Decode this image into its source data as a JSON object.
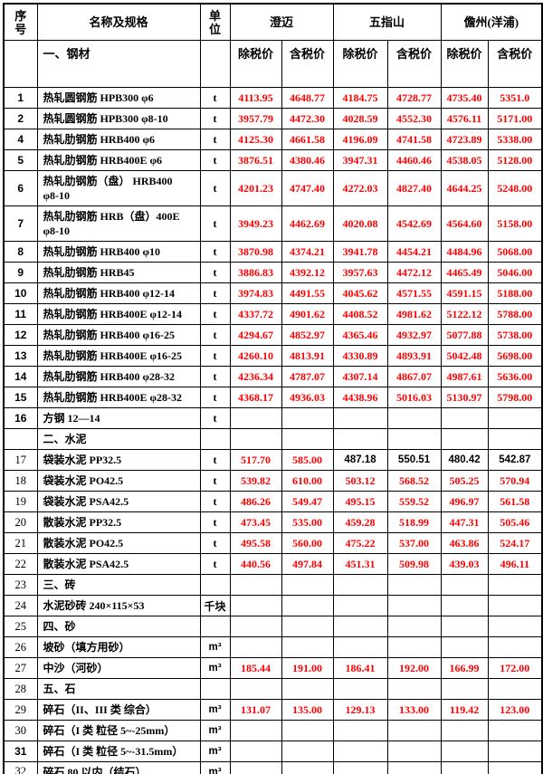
{
  "colors": {
    "price_red": "#ff0000",
    "text_black": "#000000",
    "border": "#000000",
    "background": "#ffffff"
  },
  "table": {
    "header": {
      "seq": "序\n号",
      "name": "名称及规格",
      "unit": "单\n位",
      "regions": [
        "澄迈",
        "五指山",
        "儋州(洋浦)"
      ],
      "price_types": [
        "除税价",
        "含税价"
      ],
      "first_section": "一、钢材"
    },
    "rows": [
      {
        "no": "1",
        "name": "热轧圆钢筋 HPB300 φ6",
        "unit": "t",
        "vals": [
          "4113.95",
          "4648.77",
          "4184.75",
          "4728.77",
          "4735.40",
          "5351.0"
        ]
      },
      {
        "no": "2",
        "name": "热轧圆钢筋 HPB300 φ8-10",
        "unit": "t",
        "vals": [
          "3957.79",
          "4472.30",
          "4028.59",
          "4552.30",
          "4576.11",
          "5171.00"
        ]
      },
      {
        "no": "4",
        "name": "热轧肋钢筋 HRB400 φ6",
        "unit": "t",
        "vals": [
          "4125.30",
          "4661.58",
          "4196.09",
          "4741.58",
          "4723.89",
          "5338.00"
        ]
      },
      {
        "no": "5",
        "name": "热轧肋钢筋 HRB400E φ6",
        "unit": "t",
        "vals": [
          "3876.51",
          "4380.46",
          "3947.31",
          "4460.46",
          "4538.05",
          "5128.00"
        ]
      },
      {
        "no": "6",
        "name": "热轧肋钢筋（盘） HRB400\nφ8-10",
        "unit": "t",
        "tall": true,
        "vals": [
          "4201.23",
          "4747.40",
          "4272.03",
          "4827.40",
          "4644.25",
          "5248.00"
        ]
      },
      {
        "no": "7",
        "name": "热轧肋钢筋 HRB（盘）400E\nφ8-10",
        "unit": "t",
        "tall": true,
        "vals": [
          "3949.23",
          "4462.69",
          "4020.08",
          "4542.69",
          "4564.60",
          "5158.00"
        ]
      },
      {
        "no": "8",
        "name": "热轧肋钢筋 HRB400 φ10",
        "unit": "t",
        "vals": [
          "3870.98",
          "4374.21",
          "3941.78",
          "4454.21",
          "4484.96",
          "5068.00"
        ]
      },
      {
        "no": "9",
        "name": "热轧肋钢筋 HRB45",
        "unit": "t",
        "vals": [
          "3886.83",
          "4392.12",
          "3957.63",
          "4472.12",
          "4465.49",
          "5046.00"
        ]
      },
      {
        "no": "10",
        "name": "热轧肋钢筋 HRB400 φ12-14",
        "unit": "t",
        "vals": [
          "3974.83",
          "4491.55",
          "4045.62",
          "4571.55",
          "4591.15",
          "5188.00"
        ]
      },
      {
        "no": "11",
        "name": "热轧肋钢筋 HRB400E φ12-14",
        "unit": "t",
        "vals": [
          "4337.72",
          "4901.62",
          "4408.52",
          "4981.62",
          "5122.12",
          "5788.00"
        ]
      },
      {
        "no": "12",
        "name": "热轧肋钢筋 HRB400 φ16-25",
        "unit": "t",
        "vals": [
          "4294.67",
          "4852.97",
          "4365.46",
          "4932.97",
          "5077.88",
          "5738.00"
        ]
      },
      {
        "no": "13",
        "name": "热轧肋钢筋 HRB400E φ16-25",
        "unit": "t",
        "vals": [
          "4260.10",
          "4813.91",
          "4330.89",
          "4893.91",
          "5042.48",
          "5698.00"
        ]
      },
      {
        "no": "14",
        "name": "热轧肋钢筋 HRB400 φ28-32",
        "unit": "t",
        "vals": [
          "4236.34",
          "4787.07",
          "4307.14",
          "4867.07",
          "4987.61",
          "5636.00"
        ]
      },
      {
        "no": "15",
        "name": "热轧肋钢筋 HRB400E φ28-32",
        "unit": "t",
        "vals": [
          "4368.17",
          "4936.03",
          "4438.96",
          "5016.03",
          "5130.97",
          "5798.00"
        ]
      },
      {
        "no": "16",
        "name": "方钢 12—14",
        "unit": "t",
        "vals": [
          "",
          "",
          "",
          "",
          "",
          ""
        ]
      },
      {
        "no": "",
        "name": "二、水泥",
        "unit": "",
        "section": true,
        "vals": [
          "",
          "",
          "",
          "",
          "",
          ""
        ]
      },
      {
        "no": "17",
        "name": "袋装水泥 PP32.5",
        "unit": "t",
        "numSerif": true,
        "vals": [
          "517.70",
          "585.00",
          "487.18",
          "550.51",
          "480.42",
          "542.87"
        ],
        "valColors": [
          "red",
          "red",
          "black",
          "black",
          "black",
          "black"
        ]
      },
      {
        "no": "18",
        "name": "袋装水泥 PO42.5",
        "unit": "t",
        "numSerif": true,
        "vals": [
          "539.82",
          "610.00",
          "503.12",
          "568.52",
          "505.25",
          "570.94"
        ]
      },
      {
        "no": "19",
        "name": "袋装水泥 PSA42.5",
        "unit": "t",
        "numSerif": true,
        "vals": [
          "486.26",
          "549.47",
          "495.15",
          "559.52",
          "496.97",
          "561.58"
        ]
      },
      {
        "no": "20",
        "name": "散装水泥 PP32.5",
        "unit": "t",
        "numSerif": true,
        "vals": [
          "473.45",
          "535.00",
          "459.28",
          "518.99",
          "447.31",
          "505.46"
        ]
      },
      {
        "no": "21",
        "name": "散装水泥 PO42.5",
        "unit": "t",
        "numSerif": true,
        "vals": [
          "495.58",
          "560.00",
          "475.22",
          "537.00",
          "463.86",
          "524.17"
        ]
      },
      {
        "no": "22",
        "name": "散装水泥 PSA42.5",
        "unit": "t",
        "numSerif": true,
        "vals": [
          "440.56",
          "497.84",
          "451.31",
          "509.98",
          "439.03",
          "496.11"
        ]
      },
      {
        "no": "23",
        "name": "三、砖",
        "unit": "",
        "numSerif": true,
        "section": true,
        "vals": [
          "",
          "",
          "",
          "",
          "",
          ""
        ]
      },
      {
        "no": "24",
        "name": "水泥砂砖 240×115×53",
        "unit": "千块",
        "numSerif": true,
        "vals": [
          "",
          "",
          "",
          "",
          "",
          ""
        ]
      },
      {
        "no": "25",
        "name": "四、砂",
        "unit": "",
        "numSerif": true,
        "section": true,
        "vals": [
          "",
          "",
          "",
          "",
          "",
          ""
        ]
      },
      {
        "no": "26",
        "name": "坡砂（填方用砂）",
        "unit": "m³",
        "numSerif": true,
        "vals": [
          "",
          "",
          "",
          "",
          "",
          ""
        ]
      },
      {
        "no": "27",
        "name": "中沙（河砂）",
        "unit": "m³",
        "numSerif": true,
        "vals": [
          "185.44",
          "191.00",
          "186.41",
          "192.00",
          "166.99",
          "172.00"
        ]
      },
      {
        "no": "28",
        "name": "五、石",
        "unit": "",
        "numSerif": true,
        "section": true,
        "vals": [
          "",
          "",
          "",
          "",
          "",
          ""
        ]
      },
      {
        "no": "29",
        "name": "碎石（II、III 类 综合）",
        "unit": "m³",
        "numSerif": true,
        "vals": [
          "131.07",
          "135.00",
          "129.13",
          "133.00",
          "119.42",
          "123.00"
        ]
      },
      {
        "no": "30",
        "name": "碎石（I 类 粒径 5~-25mm）",
        "unit": "m³",
        "numSerif": true,
        "vals": [
          "",
          "",
          "",
          "",
          "",
          ""
        ]
      },
      {
        "no": "31",
        "name": "碎石（I 类 粒径 5~-31.5mm）",
        "unit": "m³",
        "vals": [
          "",
          "",
          "",
          "",
          "",
          ""
        ]
      },
      {
        "no": "32",
        "name": "碎石 80 以内（结石）",
        "unit": "m³",
        "numSerif": true,
        "vals": [
          "",
          "",
          "",
          "",
          "",
          ""
        ]
      }
    ]
  }
}
